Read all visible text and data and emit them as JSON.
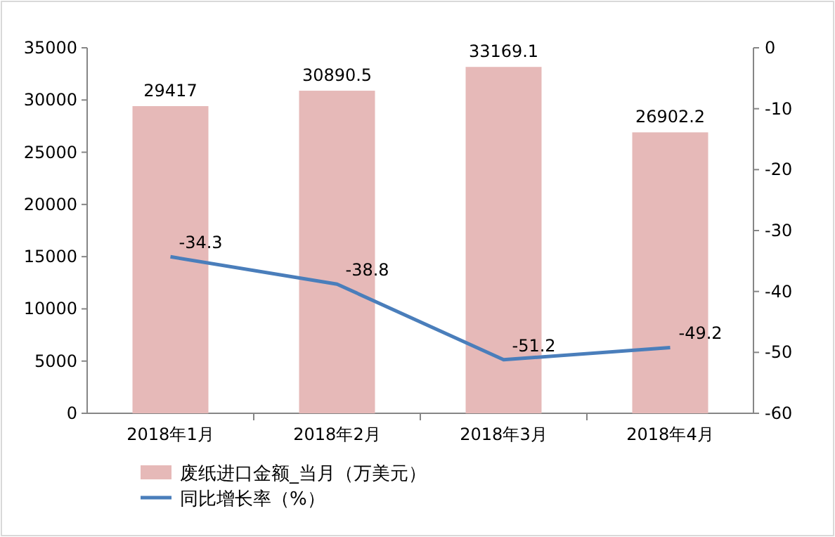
{
  "chart_data": {
    "type": "bar",
    "categories": [
      "2018年1月",
      "2018年2月",
      "2018年3月",
      "2018年4月"
    ],
    "series": [
      {
        "name": "废纸进口金额_当月（万美元）",
        "color": "#e6b9b8",
        "values": [
          29417,
          30890.5,
          33169.1,
          26902.2
        ]
      },
      {
        "name": "同比增长率（%）",
        "type": "line",
        "axis": "y2",
        "color": "#4a7ebb",
        "values": [
          -34.3,
          -38.8,
          -51.2,
          -49.2
        ]
      }
    ],
    "ylim": [
      0,
      35000
    ],
    "yticks": [
      0,
      5000,
      10000,
      15000,
      20000,
      25000,
      30000,
      35000
    ],
    "y2lim": [
      -60,
      0
    ],
    "y2ticks": [
      -60,
      -50,
      -40,
      -30,
      -20,
      -10,
      0
    ],
    "data_labels": true,
    "legend": "bottom left",
    "grid": false,
    "marker": "none",
    "line_style": "solid"
  }
}
